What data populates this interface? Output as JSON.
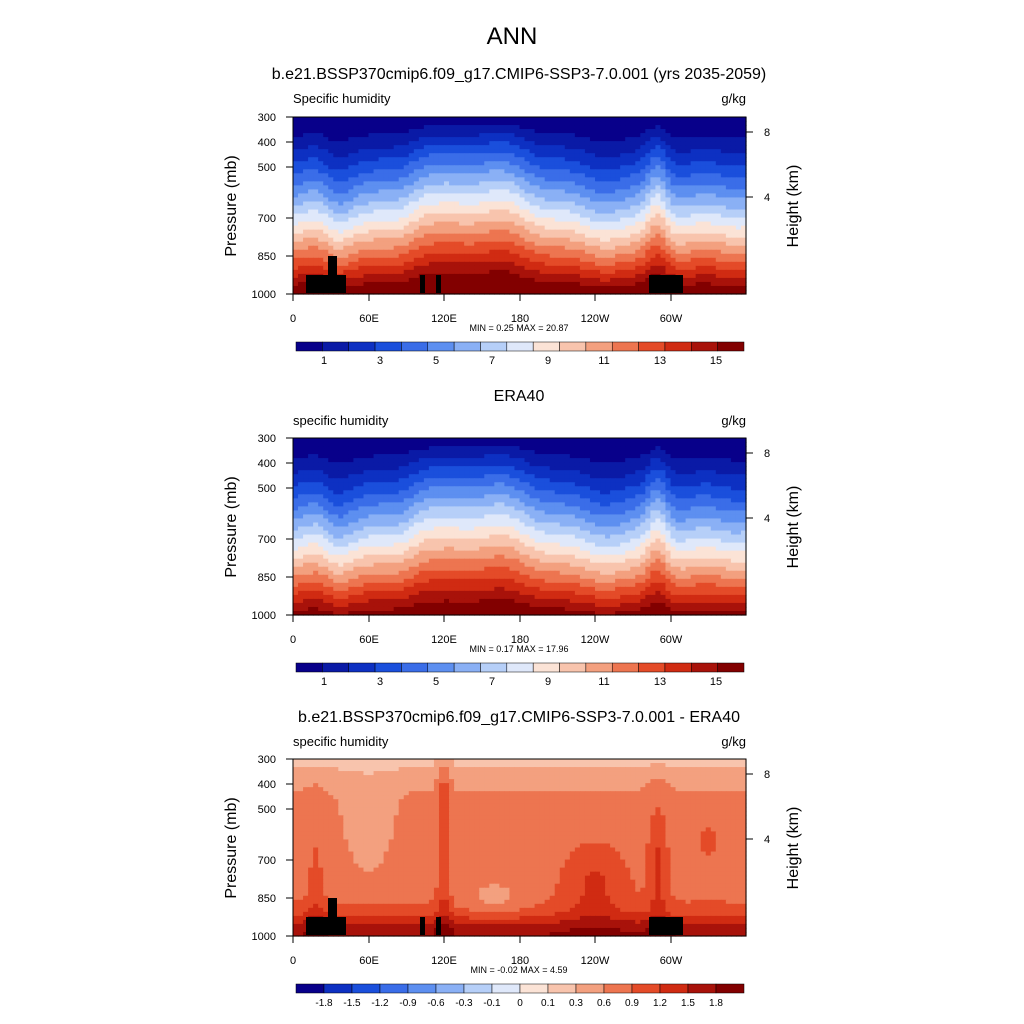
{
  "main_title": "ANN",
  "chart_data": [
    {
      "type": "heatmap",
      "title": "b.e21.BSSP370cmip6.f09_g17.CMIP6-SSP3-7.0.001 (yrs 2035-2059)",
      "left_label": "Specific humidity",
      "right_label": "g/kg",
      "ylabel": "Pressure (mb)",
      "ylabel_right": "Height (km)",
      "x_ticks": [
        "0",
        "60E",
        "120E",
        "180",
        "120W",
        "60W"
      ],
      "y_ticks": [
        "300",
        "400",
        "500",
        "700",
        "850",
        "1000"
      ],
      "height_ticks": [
        "8",
        "4"
      ],
      "minmax": "MIN =   0.25  MAX =  20.87",
      "colorbar_labels": [
        "1",
        "3",
        "5",
        "7",
        "9",
        "11",
        "13",
        "15"
      ],
      "contour_levels": [
        0.5,
        1,
        1.5,
        2,
        2.5,
        3,
        3.5,
        4,
        4.5,
        5,
        5.5,
        6,
        6.5,
        7,
        7.5,
        8,
        8.5,
        9,
        9.5,
        10,
        10.5,
        11,
        11.5,
        12,
        12.5,
        13,
        13.5,
        14,
        14.5,
        15,
        15.5
      ]
    },
    {
      "type": "heatmap",
      "title": "ERA40",
      "left_label": "specific humidity",
      "right_label": "g/kg",
      "ylabel": "Pressure (mb)",
      "ylabel_right": "Height (km)",
      "x_ticks": [
        "0",
        "60E",
        "120E",
        "180",
        "120W",
        "60W"
      ],
      "y_ticks": [
        "300",
        "400",
        "500",
        "700",
        "850",
        "1000"
      ],
      "height_ticks": [
        "8",
        "4"
      ],
      "minmax": "MIN =   0.17  MAX =  17.96",
      "colorbar_labels": [
        "1",
        "3",
        "5",
        "7",
        "9",
        "11",
        "13",
        "15"
      ]
    },
    {
      "type": "heatmap",
      "title": "b.e21.BSSP370cmip6.f09_g17.CMIP6-SSP3-7.0.001 - ERA40",
      "left_label": "specific humidity",
      "right_label": "g/kg",
      "ylabel": "Pressure (mb)",
      "ylabel_right": "Height (km)",
      "x_ticks": [
        "0",
        "60E",
        "120E",
        "180",
        "120W",
        "60W"
      ],
      "y_ticks": [
        "300",
        "400",
        "500",
        "700",
        "850",
        "1000"
      ],
      "height_ticks": [
        "8",
        "4"
      ],
      "minmax": "MIN =  -0.02  MAX =   4.59",
      "colorbar_labels": [
        "-1.8",
        "-1.5",
        "-1.2",
        "-0.9",
        "-0.6",
        "-0.3",
        "-0.1",
        "0",
        "0.1",
        "0.3",
        "0.6",
        "0.9",
        "1.2",
        "1.5",
        "1.8"
      ]
    }
  ],
  "colors": {
    "seq": [
      "#08008a",
      "#0a1aa6",
      "#0d30c2",
      "#1a4fdc",
      "#3a6de8",
      "#5d8ff0",
      "#8ab0f5",
      "#b6cff8",
      "#dfe8fa",
      "#fbe3d6",
      "#f8c4ad",
      "#f3a07f",
      "#ed7550",
      "#e44b28",
      "#d02b12",
      "#a8120a",
      "#820000"
    ],
    "div": [
      "#08008a",
      "#0d30c2",
      "#1a4fdc",
      "#3a6de8",
      "#5d8ff0",
      "#8ab0f5",
      "#b6cff8",
      "#dfe8fa",
      "#fbe3d6",
      "#f8c4ad",
      "#f3a07f",
      "#ed7550",
      "#e44b28",
      "#d02b12",
      "#a8120a",
      "#820000"
    ],
    "topo": "#000000"
  }
}
